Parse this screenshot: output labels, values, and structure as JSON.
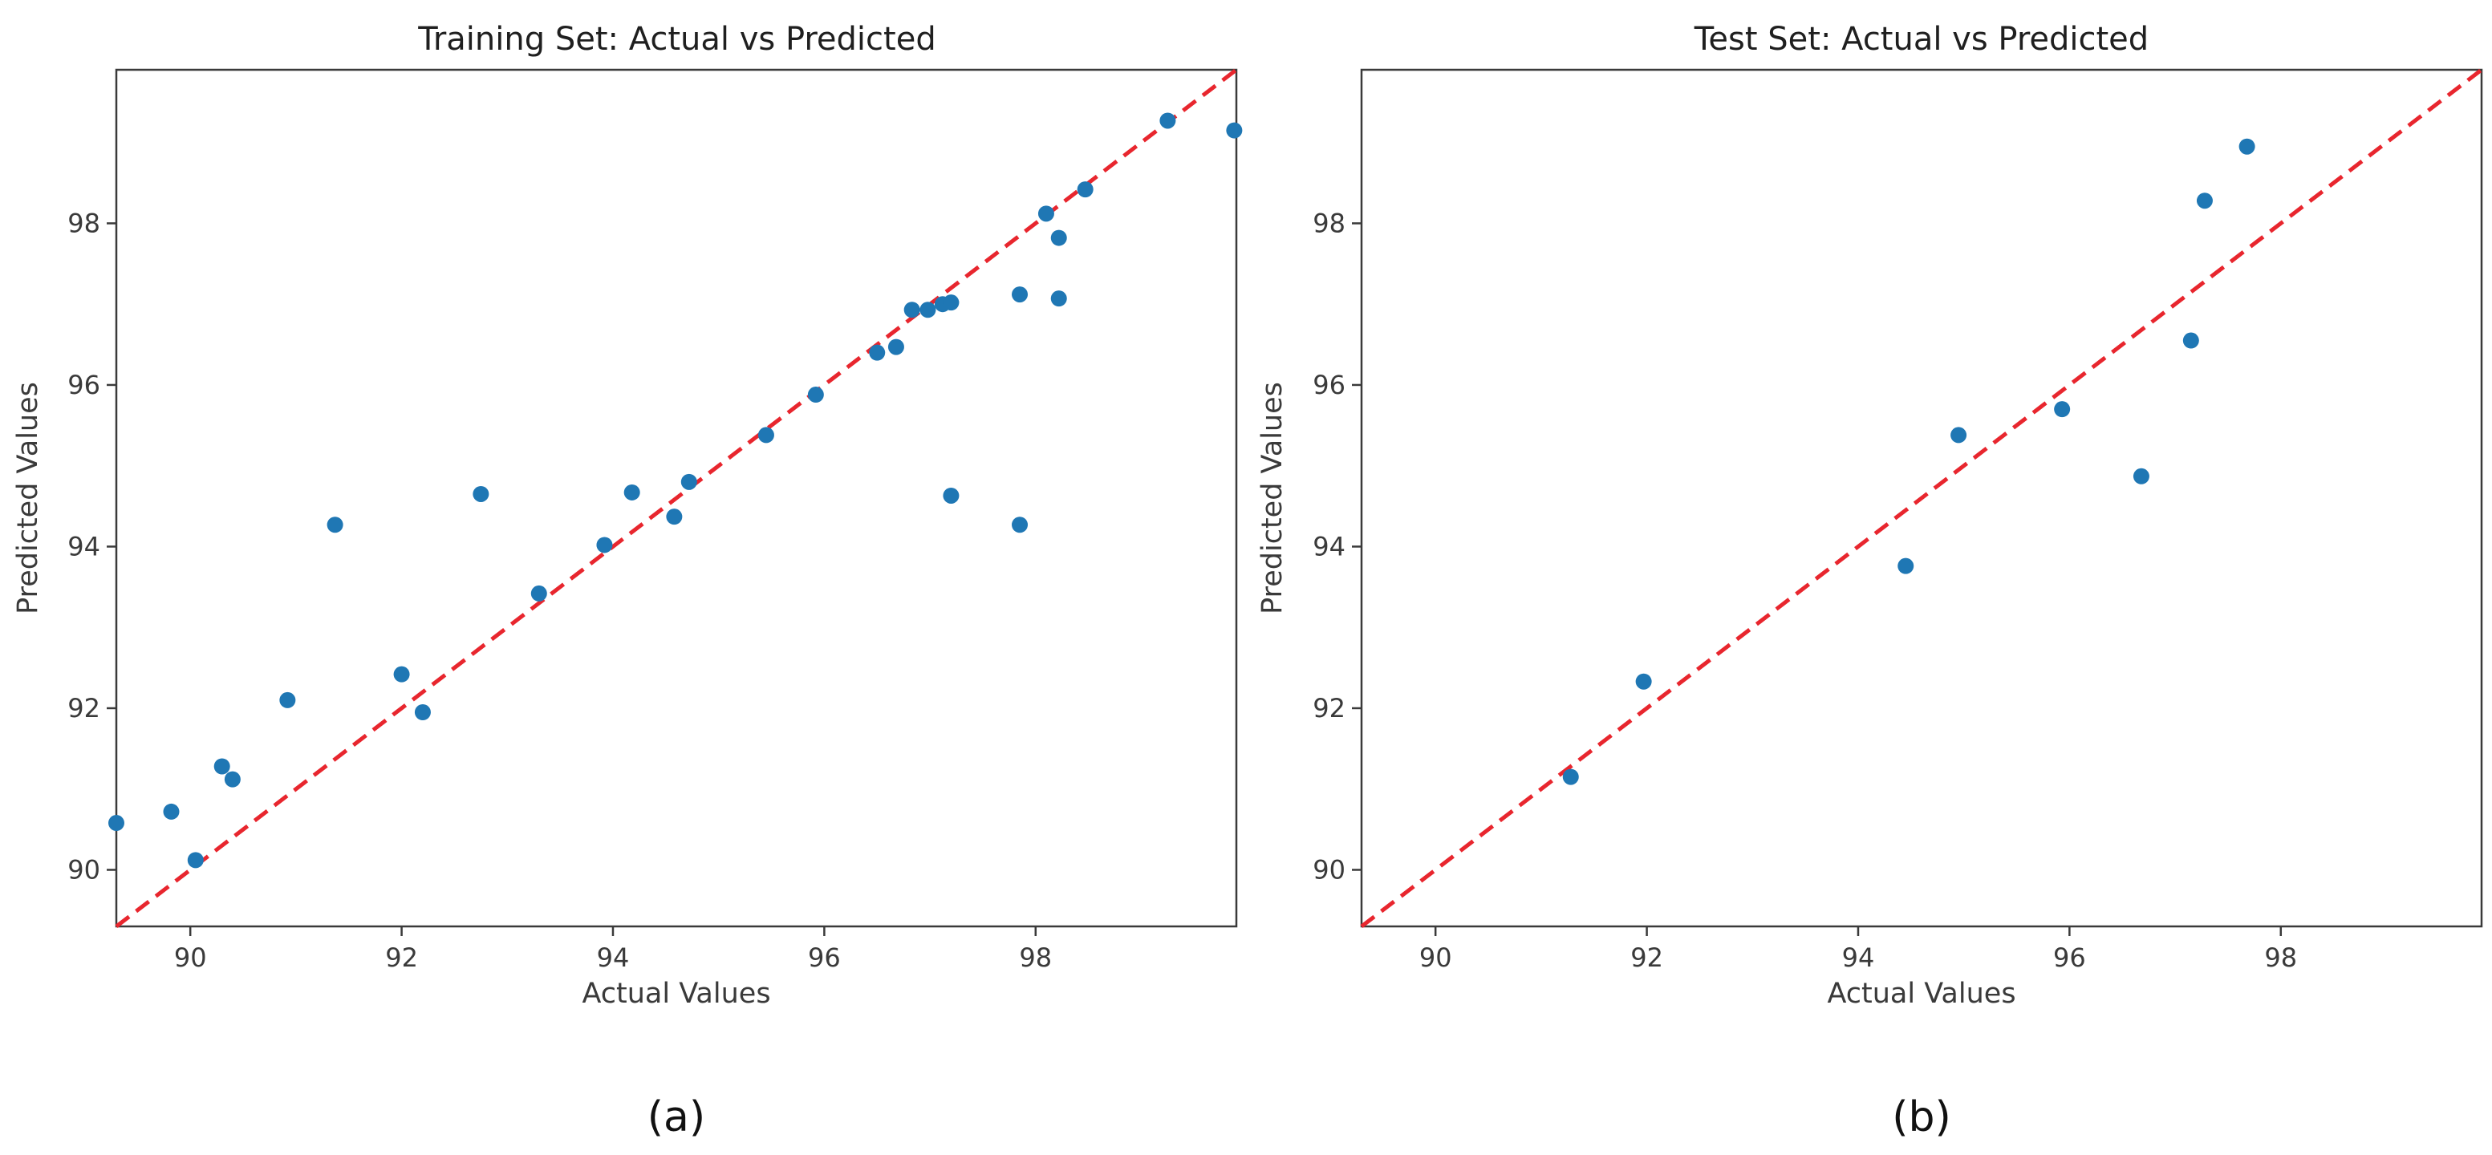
{
  "chart_data": [
    {
      "type": "scatter",
      "title": "Training Set: Actual vs Predicted",
      "xlabel": "Actual Values",
      "ylabel": "Predicted Values",
      "caption": "(a)",
      "xlim": [
        89.3,
        99.9
      ],
      "ylim": [
        89.3,
        99.9
      ],
      "xticks": [
        90,
        92,
        94,
        96,
        98
      ],
      "yticks": [
        90,
        92,
        94,
        96,
        98
      ],
      "xtick_labels": [
        "90",
        "92",
        "94",
        "96",
        "98"
      ],
      "ytick_labels": [
        "90",
        "92",
        "94",
        "96",
        "98"
      ],
      "reference_line": "y = x",
      "reference_line_color": "#e8262e",
      "marker_color": "#1f77b4",
      "points": [
        {
          "x": 89.3,
          "y": 90.58
        },
        {
          "x": 89.82,
          "y": 90.72
        },
        {
          "x": 90.05,
          "y": 90.12
        },
        {
          "x": 90.3,
          "y": 91.28
        },
        {
          "x": 90.4,
          "y": 91.12
        },
        {
          "x": 90.92,
          "y": 92.1
        },
        {
          "x": 91.37,
          "y": 94.27
        },
        {
          "x": 92.0,
          "y": 92.42
        },
        {
          "x": 92.2,
          "y": 91.95
        },
        {
          "x": 92.75,
          "y": 94.65
        },
        {
          "x": 93.3,
          "y": 93.42
        },
        {
          "x": 93.92,
          "y": 94.02
        },
        {
          "x": 94.18,
          "y": 94.67
        },
        {
          "x": 94.58,
          "y": 94.37
        },
        {
          "x": 94.72,
          "y": 94.8
        },
        {
          "x": 95.45,
          "y": 95.38
        },
        {
          "x": 95.92,
          "y": 95.88
        },
        {
          "x": 96.5,
          "y": 96.4
        },
        {
          "x": 96.68,
          "y": 96.47
        },
        {
          "x": 96.83,
          "y": 96.93
        },
        {
          "x": 96.98,
          "y": 96.93
        },
        {
          "x": 97.12,
          "y": 97.0
        },
        {
          "x": 97.2,
          "y": 97.02
        },
        {
          "x": 97.2,
          "y": 94.63
        },
        {
          "x": 97.85,
          "y": 97.12
        },
        {
          "x": 97.85,
          "y": 94.27
        },
        {
          "x": 98.1,
          "y": 98.12
        },
        {
          "x": 98.22,
          "y": 97.82
        },
        {
          "x": 98.22,
          "y": 97.07
        },
        {
          "x": 98.47,
          "y": 98.42
        },
        {
          "x": 99.25,
          "y": 99.27
        },
        {
          "x": 99.88,
          "y": 99.15
        }
      ]
    },
    {
      "type": "scatter",
      "title": "Test Set: Actual vs Predicted",
      "xlabel": "Actual Values",
      "ylabel": "Predicted Values",
      "caption": "(b)",
      "xlim": [
        89.3,
        99.9
      ],
      "ylim": [
        89.3,
        99.9
      ],
      "xticks": [
        90,
        92,
        94,
        96,
        98
      ],
      "yticks": [
        90,
        92,
        94,
        96,
        98
      ],
      "xtick_labels": [
        "90",
        "92",
        "94",
        "96",
        "98"
      ],
      "ytick_labels": [
        "90",
        "92",
        "94",
        "96",
        "98"
      ],
      "reference_line": "y = x",
      "reference_line_color": "#e8262e",
      "marker_color": "#1f77b4",
      "points": [
        {
          "x": 91.28,
          "y": 91.15
        },
        {
          "x": 91.97,
          "y": 92.33
        },
        {
          "x": 94.45,
          "y": 93.76
        },
        {
          "x": 94.95,
          "y": 95.38
        },
        {
          "x": 95.93,
          "y": 95.7
        },
        {
          "x": 96.68,
          "y": 94.87
        },
        {
          "x": 97.15,
          "y": 96.55
        },
        {
          "x": 97.28,
          "y": 98.28
        },
        {
          "x": 97.68,
          "y": 98.95
        }
      ]
    }
  ]
}
